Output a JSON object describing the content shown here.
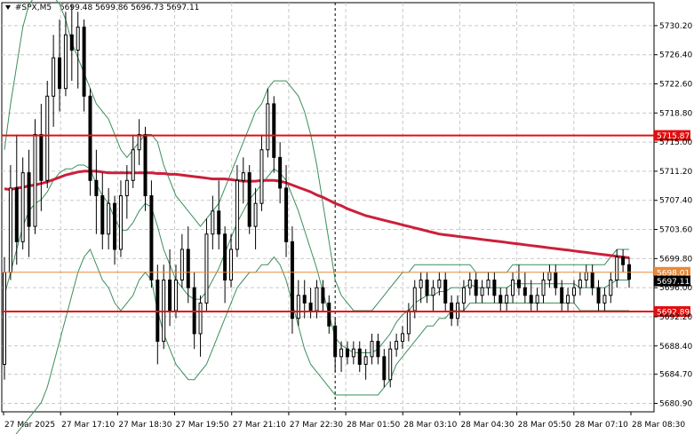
{
  "header": {
    "symbol": "#SPX,M5",
    "ohlc": "5699.48 5699.86 5696.73 5697.11"
  },
  "colors": {
    "candle": "#000000",
    "ma": "#cc1f3a",
    "bollinger": "#3a8f5a",
    "level": "#e01010",
    "orange_line": "#e88a3a",
    "grid": "#c9c9c9",
    "price_tag_bg": "#000000"
  },
  "chart_data": {
    "type": "candlestick",
    "ylim": [
      5679.8,
      5733.2
    ],
    "y_ticks": [
      "5730.20",
      "5726.40",
      "5722.60",
      "5718.80",
      "5715.00",
      "5711.20",
      "5707.40",
      "5703.60",
      "5699.80",
      "5696.00",
      "5692.20",
      "5688.40",
      "5684.70",
      "5680.90"
    ],
    "x_ticks": [
      "27 Mar 2025",
      "27 Mar 17:10",
      "27 Mar 18:30",
      "27 Mar 19:50",
      "27 Mar 21:10",
      "27 Mar 22:30",
      "28 Mar 01:50",
      "28 Mar 03:10",
      "28 Mar 04:30",
      "28 Mar 05:50",
      "28 Mar 07:10",
      "28 Mar 08:30"
    ],
    "levels": [
      {
        "label": "5715.87",
        "value": 5715.87,
        "style": "support-resistance"
      },
      {
        "label": "5692.89",
        "value": 5692.89,
        "style": "support-resistance"
      }
    ],
    "orange_level": {
      "label": "5698.01",
      "value": 5698.01
    },
    "current_price": {
      "label": "5697.11",
      "value": 5697.11
    },
    "session_separator_index": 54,
    "candles": [
      [
        5686.0,
        5700.0,
        5684.0,
        5698.0
      ],
      [
        5698.0,
        5712.0,
        5697.0,
        5709.0
      ],
      [
        5709.0,
        5716.0,
        5699.0,
        5702.0
      ],
      [
        5702.0,
        5713.0,
        5701.0,
        5711.0
      ],
      [
        5711.0,
        5714.0,
        5700.0,
        5704.0
      ],
      [
        5704.0,
        5718.0,
        5703.0,
        5716.0
      ],
      [
        5716.0,
        5720.0,
        5706.0,
        5710.0
      ],
      [
        5710.0,
        5723.0,
        5709.0,
        5721.0
      ],
      [
        5721.0,
        5729.0,
        5717.0,
        5726.0
      ],
      [
        5726.0,
        5731.0,
        5719.0,
        5722.0
      ],
      [
        5722.0,
        5732.0,
        5721.0,
        5729.0
      ],
      [
        5729.0,
        5733.0,
        5723.0,
        5727.0
      ],
      [
        5727.0,
        5732.0,
        5722.0,
        5730.0
      ],
      [
        5730.0,
        5731.0,
        5719.0,
        5721.0
      ],
      [
        5721.0,
        5722.0,
        5708.0,
        5710.0
      ],
      [
        5710.0,
        5714.0,
        5703.0,
        5708.0
      ],
      [
        5708.0,
        5711.0,
        5701.0,
        5703.0
      ],
      [
        5703.0,
        5709.0,
        5701.0,
        5707.0
      ],
      [
        5707.0,
        5708.0,
        5699.0,
        5701.0
      ],
      [
        5701.0,
        5710.0,
        5700.0,
        5708.0
      ],
      [
        5708.0,
        5712.0,
        5705.0,
        5710.0
      ],
      [
        5710.0,
        5716.0,
        5709.0,
        5714.0
      ],
      [
        5714.0,
        5718.0,
        5712.0,
        5716.0
      ],
      [
        5716.0,
        5717.0,
        5706.0,
        5708.0
      ],
      [
        5708.0,
        5710.0,
        5696.0,
        5697.0
      ],
      [
        5697.0,
        5699.0,
        5686.0,
        5689.0
      ],
      [
        5689.0,
        5699.0,
        5688.0,
        5697.0
      ],
      [
        5697.0,
        5701.0,
        5691.0,
        5693.0
      ],
      [
        5693.0,
        5699.0,
        5692.0,
        5697.0
      ],
      [
        5697.0,
        5703.0,
        5696.0,
        5701.0
      ],
      [
        5701.0,
        5704.0,
        5694.0,
        5696.0
      ],
      [
        5696.0,
        5698.0,
        5688.0,
        5690.0
      ],
      [
        5690.0,
        5695.0,
        5687.0,
        5694.0
      ],
      [
        5694.0,
        5705.0,
        5693.0,
        5703.0
      ],
      [
        5703.0,
        5708.0,
        5701.0,
        5706.0
      ],
      [
        5706.0,
        5710.0,
        5701.0,
        5703.0
      ],
      [
        5703.0,
        5704.0,
        5694.0,
        5697.0
      ],
      [
        5697.0,
        5703.0,
        5696.0,
        5701.0
      ],
      [
        5701.0,
        5712.0,
        5700.0,
        5710.0
      ],
      [
        5710.0,
        5713.0,
        5707.0,
        5711.0
      ],
      [
        5711.0,
        5712.0,
        5703.0,
        5704.0
      ],
      [
        5704.0,
        5709.0,
        5701.0,
        5707.0
      ],
      [
        5707.0,
        5716.0,
        5706.0,
        5714.0
      ],
      [
        5714.0,
        5722.0,
        5713.0,
        5720.0
      ],
      [
        5720.0,
        5721.0,
        5711.0,
        5713.0
      ],
      [
        5713.0,
        5715.0,
        5707.0,
        5709.0
      ],
      [
        5709.0,
        5712.0,
        5700.0,
        5702.0
      ],
      [
        5702.0,
        5704.0,
        5690.0,
        5692.0
      ],
      [
        5692.0,
        5697.0,
        5691.0,
        5695.0
      ],
      [
        5695.0,
        5697.0,
        5692.0,
        5694.0
      ],
      [
        5694.0,
        5696.0,
        5692.0,
        5693.0
      ],
      [
        5693.0,
        5697.0,
        5692.0,
        5696.0
      ],
      [
        5696.0,
        5697.0,
        5693.0,
        5694.0
      ],
      [
        5694.0,
        5695.0,
        5690.0,
        5691.0
      ],
      [
        5691.0,
        5692.0,
        5685.0,
        5687.0
      ],
      [
        5687.0,
        5689.0,
        5685.0,
        5688.0
      ],
      [
        5688.0,
        5689.0,
        5686.0,
        5687.0
      ],
      [
        5687.0,
        5689.0,
        5686.0,
        5688.0
      ],
      [
        5688.0,
        5689.0,
        5685.0,
        5686.0
      ],
      [
        5686.0,
        5688.0,
        5684.0,
        5687.0
      ],
      [
        5687.0,
        5690.0,
        5686.0,
        5689.0
      ],
      [
        5689.0,
        5690.0,
        5686.0,
        5687.0
      ],
      [
        5687.0,
        5688.0,
        5683.0,
        5684.0
      ],
      [
        5684.0,
        5689.0,
        5683.0,
        5688.0
      ],
      [
        5688.0,
        5690.0,
        5687.0,
        5689.0
      ],
      [
        5689.0,
        5691.0,
        5688.0,
        5690.0
      ],
      [
        5690.0,
        5694.0,
        5689.0,
        5693.0
      ],
      [
        5693.0,
        5697.0,
        5692.0,
        5696.0
      ],
      [
        5696.0,
        5698.0,
        5694.0,
        5697.0
      ],
      [
        5697.0,
        5698.0,
        5694.0,
        5695.0
      ],
      [
        5695.0,
        5697.0,
        5693.0,
        5696.0
      ],
      [
        5696.0,
        5698.0,
        5695.0,
        5697.0
      ],
      [
        5697.0,
        5698.0,
        5693.0,
        5694.0
      ],
      [
        5694.0,
        5695.0,
        5691.0,
        5692.0
      ],
      [
        5692.0,
        5695.0,
        5691.0,
        5694.0
      ],
      [
        5694.0,
        5697.0,
        5693.0,
        5696.0
      ],
      [
        5696.0,
        5698.0,
        5695.0,
        5697.0
      ],
      [
        5697.0,
        5698.0,
        5694.0,
        5695.0
      ],
      [
        5695.0,
        5697.0,
        5694.0,
        5696.0
      ],
      [
        5696.0,
        5698.0,
        5695.0,
        5697.0
      ],
      [
        5697.0,
        5698.0,
        5694.0,
        5695.0
      ],
      [
        5695.0,
        5696.0,
        5693.0,
        5694.0
      ],
      [
        5694.0,
        5696.0,
        5693.0,
        5695.0
      ],
      [
        5695.0,
        5698.0,
        5694.0,
        5697.0
      ],
      [
        5697.0,
        5699.0,
        5695.0,
        5696.0
      ],
      [
        5696.0,
        5698.0,
        5694.0,
        5695.0
      ],
      [
        5695.0,
        5697.0,
        5693.0,
        5694.0
      ],
      [
        5694.0,
        5696.0,
        5693.0,
        5695.0
      ],
      [
        5695.0,
        5698.0,
        5694.0,
        5697.0
      ],
      [
        5697.0,
        5699.0,
        5696.0,
        5698.0
      ],
      [
        5698.0,
        5699.0,
        5695.0,
        5696.0
      ],
      [
        5696.0,
        5697.0,
        5693.0,
        5694.0
      ],
      [
        5694.0,
        5696.0,
        5693.0,
        5695.0
      ],
      [
        5695.0,
        5697.0,
        5694.0,
        5696.0
      ],
      [
        5696.0,
        5698.0,
        5695.0,
        5697.0
      ],
      [
        5697.0,
        5699.0,
        5696.0,
        5698.0
      ],
      [
        5698.0,
        5699.0,
        5695.0,
        5696.0
      ],
      [
        5696.0,
        5697.0,
        5693.0,
        5694.0
      ],
      [
        5694.0,
        5696.0,
        5693.0,
        5695.0
      ],
      [
        5695.0,
        5698.0,
        5694.0,
        5697.0
      ],
      [
        5697.0,
        5701.0,
        5696.0,
        5700.0
      ],
      [
        5700.0,
        5701.0,
        5698.0,
        5699.0
      ],
      [
        5699.0,
        5700.0,
        5696.0,
        5697.11
      ]
    ],
    "ma_values": [
      5708.9,
      5708.8,
      5709.0,
      5709.1,
      5709.3,
      5709.4,
      5709.6,
      5709.8,
      5710.1,
      5710.4,
      5710.7,
      5710.9,
      5711.1,
      5711.2,
      5711.2,
      5711.2,
      5711.1,
      5711.0,
      5711.0,
      5711.0,
      5711.0,
      5711.0,
      5711.0,
      5711.0,
      5711.0,
      5710.9,
      5710.9,
      5710.8,
      5710.8,
      5710.7,
      5710.6,
      5710.5,
      5710.4,
      5710.3,
      5710.2,
      5710.2,
      5710.2,
      5710.1,
      5710.0,
      5709.9,
      5709.9,
      5709.9,
      5710.0,
      5710.0,
      5710.0,
      5709.9,
      5709.7,
      5709.4,
      5709.1,
      5708.8,
      5708.5,
      5708.1,
      5707.8,
      5707.4,
      5707.0,
      5706.7,
      5706.3,
      5706.0,
      5705.7,
      5705.4,
      5705.2,
      5705.0,
      5704.8,
      5704.6,
      5704.4,
      5704.2,
      5704.0,
      5703.8,
      5703.6,
      5703.4,
      5703.2,
      5703.0,
      5702.9,
      5702.8,
      5702.7,
      5702.6,
      5702.5,
      5702.4,
      5702.3,
      5702.2,
      5702.1,
      5702.0,
      5701.9,
      5701.8,
      5701.7,
      5701.6,
      5701.5,
      5701.4,
      5701.3,
      5701.2,
      5701.1,
      5701.0,
      5700.9,
      5700.8,
      5700.7,
      5700.6,
      5700.5,
      5700.4,
      5700.3,
      5700.2,
      5700.1,
      5700.0,
      5699.9
    ],
    "bb_upper": [
      5714,
      5720,
      5725,
      5730,
      5733,
      5734,
      5734,
      5734,
      5734,
      5733,
      5731,
      5728,
      5726,
      5724,
      5722,
      5720,
      5719,
      5718,
      5716,
      5714,
      5713,
      5714,
      5715,
      5716,
      5716,
      5715,
      5712,
      5710,
      5708,
      5707,
      5706,
      5705,
      5704,
      5705,
      5706,
      5707,
      5709,
      5711,
      5713,
      5715,
      5717,
      5719,
      5720,
      5722,
      5723,
      5723,
      5723,
      5722,
      5721,
      5719,
      5716,
      5712,
      5707,
      5702,
      5697,
      5695,
      5694,
      5693,
      5693,
      5693,
      5693,
      5694,
      5695,
      5696,
      5697,
      5698,
      5698,
      5699,
      5699,
      5699,
      5699,
      5699,
      5699,
      5699,
      5699,
      5699,
      5699,
      5698,
      5698,
      5698,
      5698,
      5698,
      5698,
      5699,
      5699,
      5699,
      5699,
      5699,
      5699,
      5699,
      5699,
      5699,
      5699,
      5699,
      5699,
      5699,
      5699,
      5699,
      5699,
      5700,
      5701,
      5701,
      5701
    ],
    "bb_lower": [
      5676,
      5676,
      5677,
      5678,
      5679,
      5680,
      5681,
      5683,
      5686,
      5689,
      5692,
      5695,
      5698,
      5700,
      5701,
      5699,
      5697,
      5696,
      5694,
      5693,
      5694,
      5695,
      5697,
      5698,
      5697,
      5693,
      5690,
      5688,
      5686,
      5685,
      5684,
      5684,
      5685,
      5686,
      5688,
      5690,
      5692,
      5694,
      5696,
      5697,
      5698,
      5698,
      5699,
      5699,
      5700,
      5699,
      5697,
      5694,
      5691,
      5688,
      5686,
      5685,
      5684,
      5683,
      5682,
      5682,
      5682,
      5682,
      5682,
      5682,
      5682,
      5682,
      5683,
      5684,
      5686,
      5687,
      5688,
      5689,
      5690,
      5691,
      5691,
      5692,
      5692,
      5693,
      5693,
      5693,
      5694,
      5694,
      5694,
      5694,
      5694,
      5694,
      5694,
      5694,
      5694,
      5694,
      5694,
      5694,
      5694,
      5694,
      5694,
      5694,
      5694,
      5694,
      5693,
      5693,
      5693,
      5693,
      5693,
      5693,
      5693,
      5693,
      5693
    ]
  }
}
